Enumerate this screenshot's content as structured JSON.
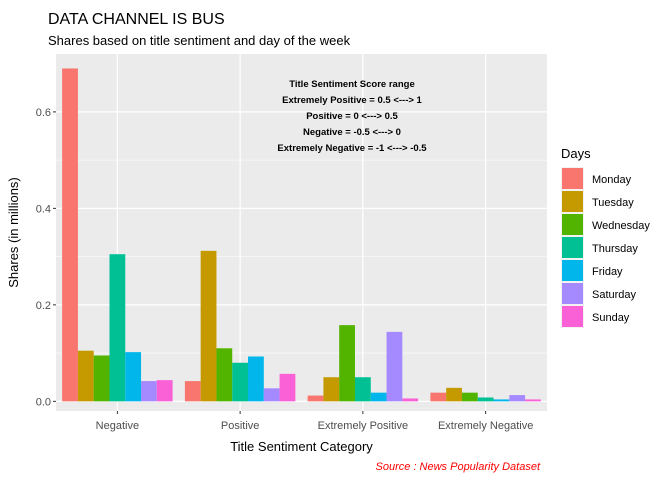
{
  "chart_data": {
    "type": "bar",
    "title": "DATA CHANNEL IS BUS",
    "subtitle": "Shares based on title sentiment and day of the week",
    "xlabel": "Title Sentiment Category",
    "ylabel": "Shares (in millions)",
    "caption": "Source : News Popularity Dataset",
    "categories": [
      "Negative",
      "Positive",
      "Extremely Positive",
      "Extremely Negative"
    ],
    "ylim": [
      -0.02,
      0.72
    ],
    "yticks": [
      "0.0",
      "0.2",
      "0.4",
      "0.6"
    ],
    "ytick_values": [
      0.0,
      0.2,
      0.4,
      0.6
    ],
    "grid": true,
    "legend": {
      "title": "Days",
      "position": "right"
    },
    "annotation": [
      "Title Sentiment Score range",
      "Extremely Positive = 0.5 <---> 1",
      "Positive = 0 <---> 0.5",
      "Negative = -0.5 <---> 0",
      "Extremely Negative = -1 <---> -0.5"
    ],
    "series": [
      {
        "name": "Monday",
        "color": "#F8766D",
        "values": [
          0.69,
          0.042,
          0.012,
          0.018
        ]
      },
      {
        "name": "Tuesday",
        "color": "#C49A00",
        "values": [
          0.105,
          0.312,
          0.05,
          0.028
        ]
      },
      {
        "name": "Wednesday",
        "color": "#53B400",
        "values": [
          0.095,
          0.11,
          0.158,
          0.018
        ]
      },
      {
        "name": "Thursday",
        "color": "#00C094",
        "values": [
          0.305,
          0.08,
          0.05,
          0.008
        ]
      },
      {
        "name": "Friday",
        "color": "#00B6EB",
        "values": [
          0.102,
          0.093,
          0.018,
          0.004
        ]
      },
      {
        "name": "Saturday",
        "color": "#A58AFF",
        "values": [
          0.042,
          0.027,
          0.144,
          0.013
        ]
      },
      {
        "name": "Sunday",
        "color": "#FB61D7",
        "values": [
          0.044,
          0.057,
          0.006,
          0.004
        ]
      }
    ]
  }
}
